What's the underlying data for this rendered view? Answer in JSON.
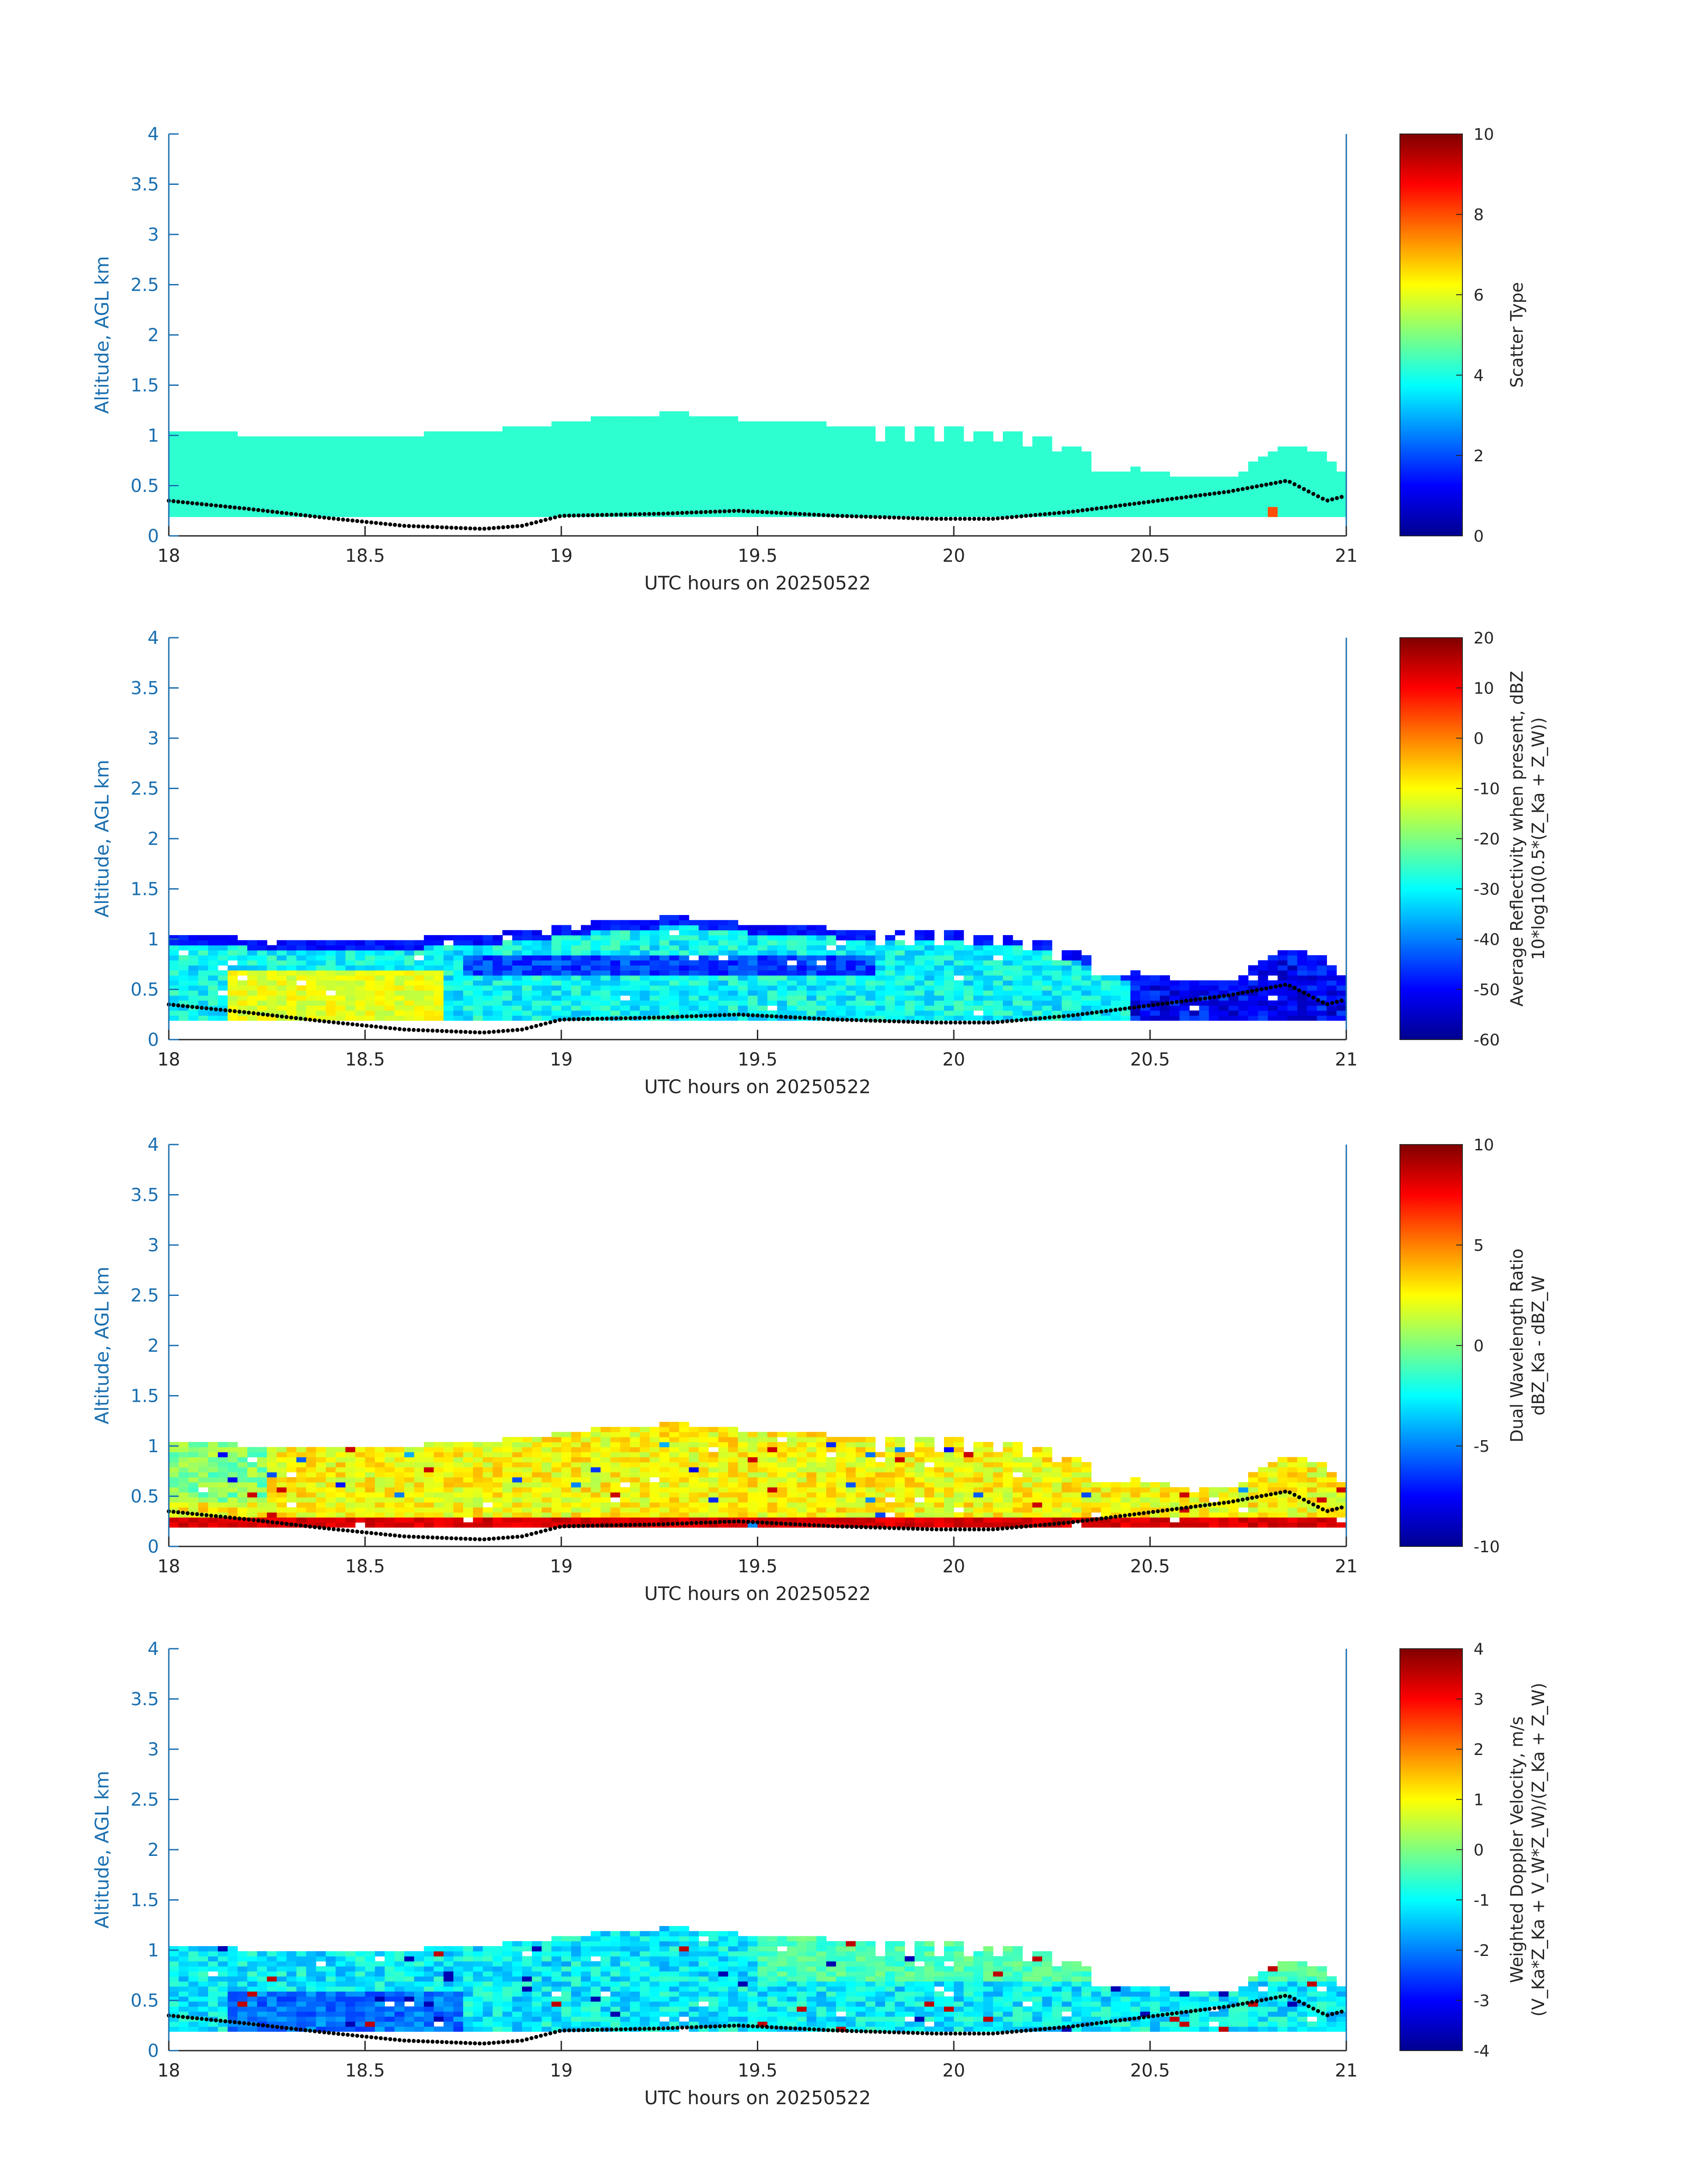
{
  "figure": {
    "panels": [
      {
        "id": "scatter",
        "ylabel": "Altitude, AGL km",
        "xlabel": "UTC hours on 20250522",
        "colorbar": {
          "label1": "Scatter Type",
          "label2": "",
          "min": 0,
          "max": 10,
          "ticks": [
            "0",
            "2",
            "4",
            "6",
            "8",
            "10"
          ]
        }
      },
      {
        "id": "reflectivity",
        "ylabel": "Altitude, AGL km",
        "xlabel": "UTC hours on 20250522",
        "colorbar": {
          "label1": "Average Reflectivity when present, dBZ",
          "label2": "10*log10(0.5*(Z_Ka + Z_W))",
          "min": -60,
          "max": 20,
          "ticks": [
            "-60",
            "-50",
            "-40",
            "-30",
            "-20",
            "-10",
            "0",
            "10",
            "20"
          ]
        }
      },
      {
        "id": "dwr",
        "ylabel": "Altitude, AGL km",
        "xlabel": "UTC hours on 20250522",
        "colorbar": {
          "label1": "Dual Wavelength Ratio",
          "label2": "dBZ_Ka - dBZ_W",
          "min": -10,
          "max": 10,
          "ticks": [
            "-10",
            "-5",
            "0",
            "5",
            "10"
          ]
        }
      },
      {
        "id": "velocity",
        "ylabel": "Altitude, AGL km",
        "xlabel": "UTC hours on 20250522",
        "colorbar": {
          "label1": "Weighted Doppler Velocity, m/s",
          "label2": "(V_Ka*Z_Ka + V_W*Z_W)/(Z_Ka + Z_W)",
          "min": -4,
          "max": 4,
          "ticks": [
            "-4",
            "-3",
            "-2",
            "-1",
            "0",
            "1",
            "2",
            "3",
            "4"
          ]
        }
      }
    ]
  },
  "chart_data": [
    {
      "type": "heatmap",
      "panel": "scatter",
      "xlabel": "UTC hours on 20250522",
      "ylabel": "Altitude, AGL km",
      "xlim": [
        18,
        21
      ],
      "ylim": [
        0,
        4
      ],
      "xticks": [
        "18",
        "18.5",
        "19",
        "19.5",
        "20",
        "20.5",
        "21"
      ],
      "yticks": [
        "0",
        "0.5",
        "1",
        "1.5",
        "2",
        "2.5",
        "3",
        "3.5",
        "4"
      ],
      "clim": [
        0,
        10
      ],
      "colorbar_label": "Scatter Type",
      "colormap": "jet",
      "cloud_top_km": [
        [
          18.0,
          1.0
        ],
        [
          18.15,
          1.0
        ],
        [
          18.3,
          0.95
        ],
        [
          18.5,
          0.95
        ],
        [
          18.7,
          1.0
        ],
        [
          18.9,
          1.05
        ],
        [
          19.1,
          1.15
        ],
        [
          19.3,
          1.2
        ],
        [
          19.5,
          1.12
        ],
        [
          19.65,
          1.1
        ],
        [
          19.8,
          1.05
        ],
        [
          20.0,
          1.05
        ],
        [
          20.2,
          1.0
        ],
        [
          20.35,
          0.8
        ],
        [
          20.5,
          0.6
        ],
        [
          20.7,
          0.55
        ],
        [
          20.85,
          0.9
        ],
        [
          20.95,
          0.8
        ],
        [
          21.0,
          0.55
        ]
      ],
      "echo_base_km": 0.19,
      "dominant_value": 4.2,
      "cloud_base_points_km": [
        [
          18.0,
          0.35
        ],
        [
          18.2,
          0.27
        ],
        [
          18.4,
          0.18
        ],
        [
          18.6,
          0.1
        ],
        [
          18.8,
          0.07
        ],
        [
          18.9,
          0.1
        ],
        [
          19.0,
          0.2
        ],
        [
          19.25,
          0.22
        ],
        [
          19.45,
          0.25
        ],
        [
          19.7,
          0.2
        ],
        [
          19.95,
          0.17
        ],
        [
          20.1,
          0.17
        ],
        [
          20.3,
          0.24
        ],
        [
          20.5,
          0.34
        ],
        [
          20.7,
          0.44
        ],
        [
          20.85,
          0.55
        ],
        [
          20.95,
          0.35
        ],
        [
          21.0,
          0.4
        ]
      ]
    },
    {
      "type": "heatmap",
      "panel": "reflectivity",
      "xlabel": "UTC hours on 20250522",
      "ylabel": "Altitude, AGL km",
      "xlim": [
        18,
        21
      ],
      "ylim": [
        0,
        4
      ],
      "xticks": [
        "18",
        "18.5",
        "19",
        "19.5",
        "20",
        "20.5",
        "21"
      ],
      "yticks": [
        "0",
        "0.5",
        "1",
        "1.5",
        "2",
        "2.5",
        "3",
        "3.5",
        "4"
      ],
      "clim": [
        -60,
        20
      ],
      "colorbar_label": "Average Reflectivity when present, dBZ",
      "colormap": "jet",
      "typical_range_dBZ": [
        -55,
        -10
      ],
      "max_region_dBZ": -10,
      "max_region_time_hours": [
        18.2,
        18.7
      ]
    },
    {
      "type": "heatmap",
      "panel": "dwr",
      "xlabel": "UTC hours on 20250522",
      "ylabel": "Altitude, AGL km",
      "xlim": [
        18,
        21
      ],
      "ylim": [
        0,
        4
      ],
      "xticks": [
        "18",
        "18.5",
        "19",
        "19.5",
        "20",
        "20.5",
        "21"
      ],
      "yticks": [
        "0",
        "0.5",
        "1",
        "1.5",
        "2",
        "2.5",
        "3",
        "3.5",
        "4"
      ],
      "clim": [
        -10,
        10
      ],
      "colorbar_label": "Dual Wavelength Ratio",
      "colormap": "jet",
      "typical_range_dB": [
        0,
        5
      ],
      "surface_band_dB": 7
    },
    {
      "type": "heatmap",
      "panel": "velocity",
      "xlabel": "UTC hours on 20250522",
      "ylabel": "Altitude, AGL km",
      "xlim": [
        18,
        21
      ],
      "ylim": [
        0,
        4
      ],
      "xticks": [
        "18",
        "18.5",
        "19",
        "19.5",
        "20",
        "20.5",
        "21"
      ],
      "yticks": [
        "0",
        "0.5",
        "1",
        "1.5",
        "2",
        "2.5",
        "3",
        "3.5",
        "4"
      ],
      "clim": [
        -4,
        4
      ],
      "colorbar_label": "Weighted Doppler Velocity, m/s",
      "colormap": "jet",
      "typical_range_ms": [
        -2,
        0
      ]
    }
  ]
}
